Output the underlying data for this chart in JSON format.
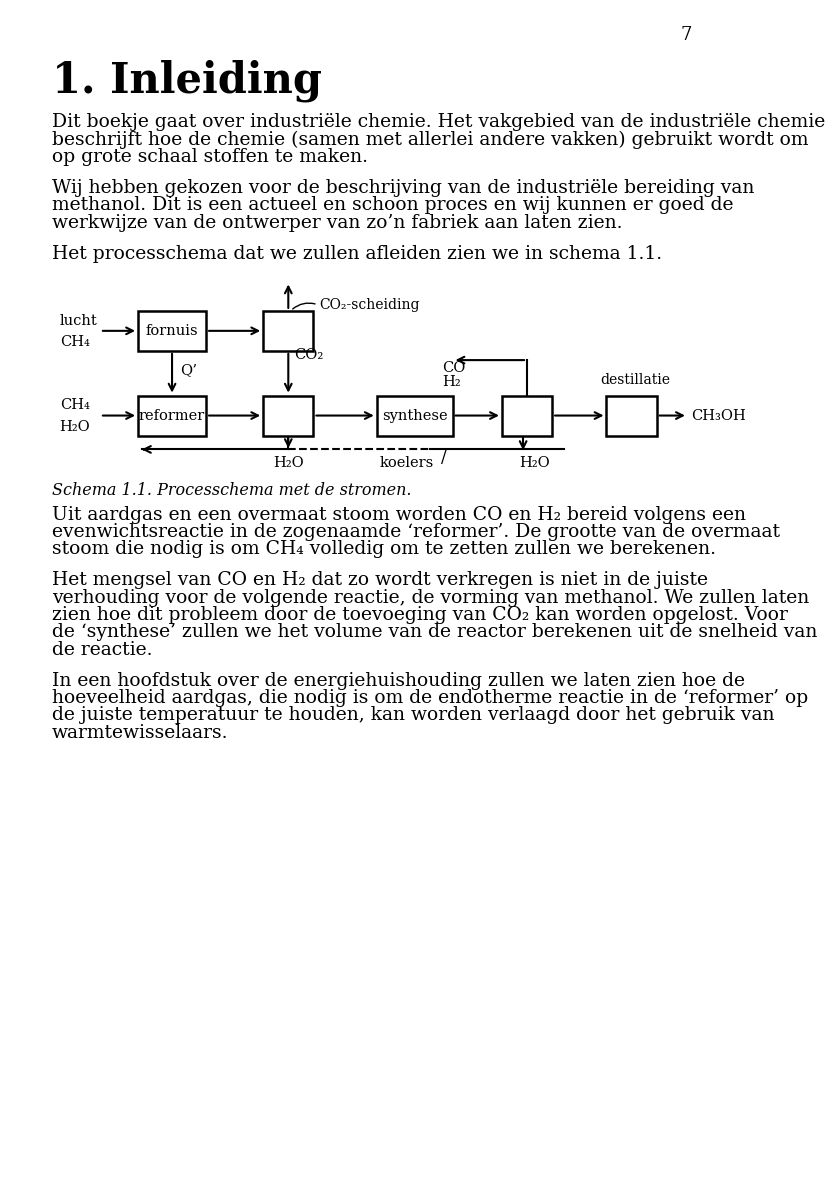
{
  "page_number": "7",
  "title": "1. Inleiding",
  "para1_lines": [
    "Dit boekje gaat over industriële chemie. Het vakgebied van de industriële chemie",
    "beschrijft hoe de chemie (samen met allerlei andere vakken) gebruikt wordt om",
    "op grote schaal stoffen te maken."
  ],
  "para2_lines": [
    "Wij hebben gekozen voor de beschrijving van de industriële bereiding van",
    "methanol. Dit is een actueel en schoon proces en wij kunnen er goed de",
    "werkwijze van de ontwerper van zo’n fabriek aan laten zien."
  ],
  "para3_lines": [
    "Het processchema dat we zullen afleiden zien we in schema 1.1."
  ],
  "schema_caption": "Schema 1.1. Processchema met de stromen.",
  "after_para1_lines": [
    "Uit aardgas en een overmaat stoom worden CO en H₂ bereid volgens een",
    "evenwichtsreactie in de zogenaamde ‘reformer’. De grootte van de overmaat",
    "stoom die nodig is om CH₄ volledig om te zetten zullen we berekenen."
  ],
  "after_para2_lines": [
    "Het mengsel van CO en H₂ dat zo wordt verkregen is niet in de juiste",
    "verhouding voor de volgende reactie, de vorming van methanol. We zullen laten",
    "zien hoe dit probleem door de toevoeging van CO₂ kan worden opgelost. Voor",
    "de ‘synthese’ zullen we het volume van de reactor berekenen uit de snelheid van",
    "de reactie."
  ],
  "after_para3_lines": [
    "In een hoofdstuk over de energiehuishouding zullen we laten zien hoe de",
    "hoeveelheid aardgas, die nodig is om de endotherme reactie in de ‘reformer’ op",
    "de juiste temperatuur te houden, kan worden verlaagd door het gebruik van",
    "warmtewisselaars."
  ],
  "bg_color": "#ffffff",
  "text_color": "#000000"
}
